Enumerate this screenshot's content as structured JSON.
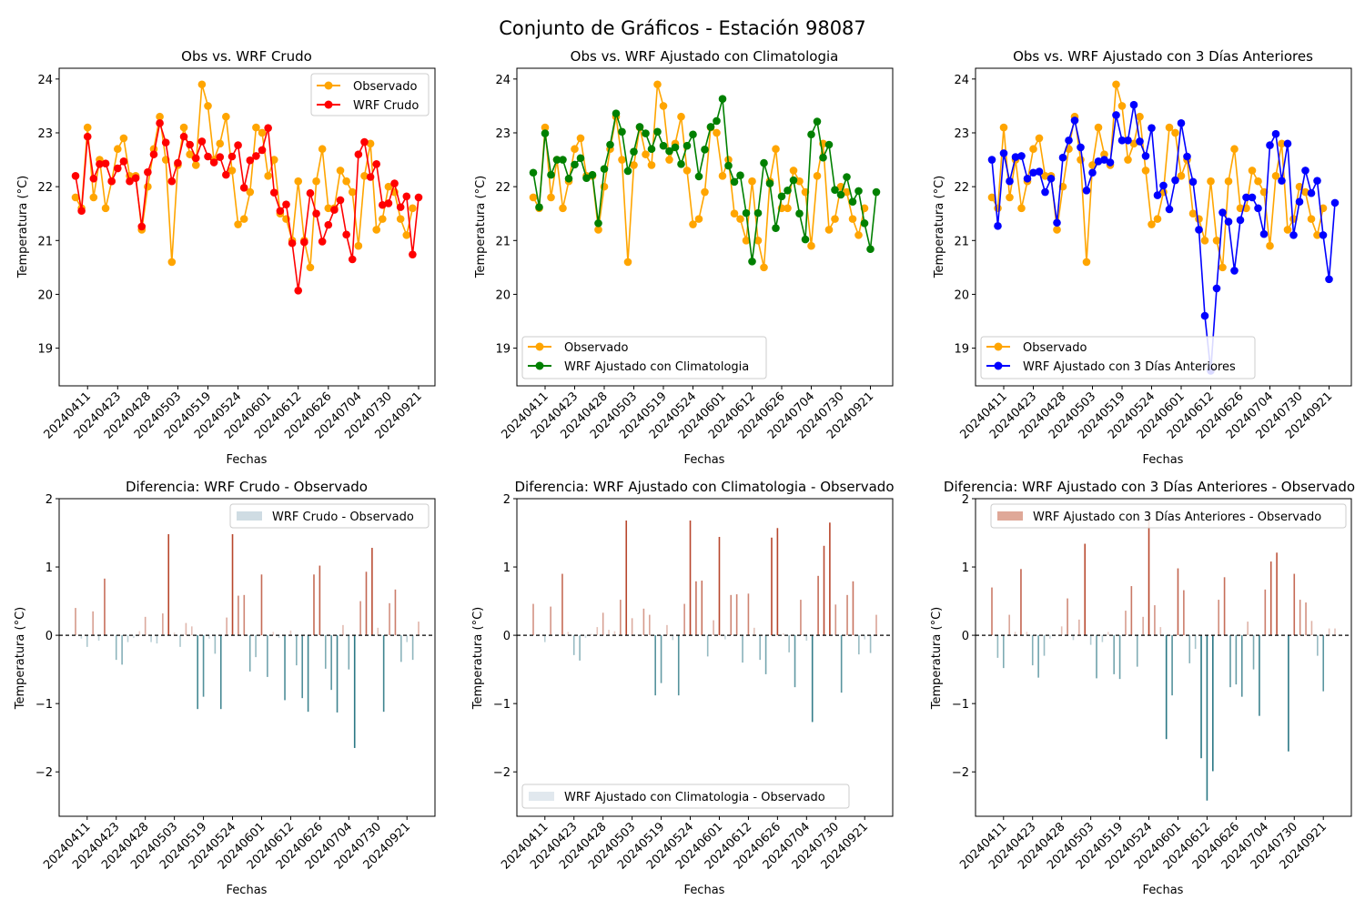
{
  "figure": {
    "suptitle": "Conjunto de Gráficos - Estación 98087"
  },
  "chart_data": [
    {
      "type": "line",
      "title": "Obs vs. WRF Crudo",
      "xlabel": "Fechas",
      "ylabel": "Temperatura (°C)",
      "ylim": [
        18.3,
        24.2
      ],
      "yticks": [
        19,
        20,
        21,
        22,
        23,
        24
      ],
      "xtick_labels": [
        "20240411",
        "20240423",
        "20240428",
        "20240503",
        "20240519",
        "20240524",
        "20240601",
        "20240612",
        "20240626",
        "20240704",
        "20240730",
        "20240921"
      ],
      "legend_position": "upper right",
      "series": [
        {
          "name": "Observado",
          "color": "#ffa500",
          "values": [
            21.8,
            21.6,
            23.1,
            21.8,
            22.5,
            21.6,
            22.1,
            22.7,
            22.9,
            22.2,
            22.2,
            21.2,
            22.0,
            22.7,
            23.3,
            22.5,
            20.6,
            22.4,
            23.1,
            22.6,
            22.4,
            23.9,
            23.5,
            22.5,
            22.8,
            23.3,
            22.3,
            21.3,
            21.4,
            21.9,
            23.1,
            23.0,
            22.2,
            22.5,
            21.5,
            21.4,
            21.0,
            22.1,
            21.0,
            20.5,
            22.1,
            22.7,
            21.6,
            21.6,
            22.3,
            22.1,
            21.9,
            20.9,
            22.2,
            22.8,
            21.2,
            21.4,
            22.0,
            21.9,
            21.4,
            21.1,
            21.6
          ]
        },
        {
          "name": "WRF Crudo",
          "color": "#ff0000",
          "values": [
            22.2,
            21.55,
            22.93,
            22.15,
            22.42,
            22.43,
            22.1,
            22.34,
            22.47,
            22.1,
            22.16,
            21.26,
            22.27,
            22.6,
            23.18,
            22.82,
            22.1,
            22.44,
            22.93,
            22.78,
            22.53,
            22.84,
            22.56,
            22.45,
            22.55,
            22.22,
            22.56,
            22.77,
            21.98,
            22.49,
            22.57,
            22.68,
            23.09,
            21.89,
            21.55,
            21.67,
            20.95,
            20.07,
            20.97,
            21.88,
            21.5,
            20.98,
            21.29,
            21.57,
            21.75,
            21.11,
            20.65,
            22.6,
            22.83,
            22.18,
            22.42,
            21.66,
            21.69,
            22.06,
            21.62,
            21.82,
            20.74,
            21.8
          ]
        }
      ]
    },
    {
      "type": "line",
      "title": "Obs vs. WRF Ajustado con Climatologia",
      "xlabel": "Fechas",
      "ylabel": "Temperatura (°C)",
      "ylim": [
        18.3,
        24.2
      ],
      "yticks": [
        19,
        20,
        21,
        22,
        23,
        24
      ],
      "xtick_labels": [
        "20240411",
        "20240423",
        "20240428",
        "20240503",
        "20240519",
        "20240524",
        "20240601",
        "20240612",
        "20240626",
        "20240704",
        "20240730",
        "20240921"
      ],
      "legend_position": "lower left",
      "series": [
        {
          "name": "Observado",
          "color": "#ffa500",
          "values": [
            21.8,
            21.6,
            23.1,
            21.8,
            22.5,
            21.6,
            22.1,
            22.7,
            22.9,
            22.2,
            22.2,
            21.2,
            22.0,
            22.7,
            23.3,
            22.5,
            20.6,
            22.4,
            23.1,
            22.6,
            22.4,
            23.9,
            23.5,
            22.5,
            22.8,
            23.3,
            22.3,
            21.3,
            21.4,
            21.9,
            23.1,
            23.0,
            22.2,
            22.5,
            21.5,
            21.4,
            21.0,
            22.1,
            21.0,
            20.5,
            22.1,
            22.7,
            21.6,
            21.6,
            22.3,
            22.1,
            21.9,
            20.9,
            22.2,
            22.8,
            21.2,
            21.4,
            22.0,
            21.9,
            21.4,
            21.1,
            21.6
          ]
        },
        {
          "name": "WRF Ajustado con Climatologia",
          "color": "#008000",
          "values": [
            22.26,
            21.62,
            22.99,
            22.22,
            22.5,
            22.5,
            22.15,
            22.41,
            22.53,
            22.16,
            22.22,
            21.32,
            22.33,
            22.78,
            23.36,
            23.02,
            22.29,
            22.65,
            23.11,
            22.99,
            22.7,
            23.02,
            22.76,
            22.66,
            22.73,
            22.42,
            22.76,
            22.97,
            22.19,
            22.69,
            23.11,
            23.22,
            23.63,
            22.39,
            22.09,
            22.21,
            21.51,
            20.61,
            21.51,
            22.44,
            22.06,
            21.23,
            21.82,
            21.93,
            22.12,
            21.5,
            21.02,
            22.97,
            23.21,
            22.54,
            22.78,
            21.94,
            21.85,
            22.18,
            21.72,
            21.92,
            21.32,
            20.84,
            21.9
          ]
        }
      ]
    },
    {
      "type": "line",
      "title": "Obs vs. WRF Ajustado con 3 Días Anteriores",
      "xlabel": "Fechas",
      "ylabel": "Temperatura (°C)",
      "ylim": [
        18.3,
        24.2
      ],
      "yticks": [
        19,
        20,
        21,
        22,
        23,
        24
      ],
      "xtick_labels": [
        "20240411",
        "20240423",
        "20240428",
        "20240503",
        "20240519",
        "20240524",
        "20240601",
        "20240612",
        "20240626",
        "20240704",
        "20240730",
        "20240921"
      ],
      "legend_position": "lower left",
      "series": [
        {
          "name": "Observado",
          "color": "#ffa500",
          "values": [
            21.8,
            21.6,
            23.1,
            21.8,
            22.5,
            21.6,
            22.1,
            22.7,
            22.9,
            22.2,
            22.2,
            21.2,
            22.0,
            22.7,
            23.3,
            22.5,
            20.6,
            22.4,
            23.1,
            22.6,
            22.4,
            23.9,
            23.5,
            22.5,
            22.8,
            23.3,
            22.3,
            21.3,
            21.4,
            21.9,
            23.1,
            23.0,
            22.2,
            22.5,
            21.5,
            21.4,
            21.0,
            22.1,
            21.0,
            20.5,
            22.1,
            22.7,
            21.6,
            21.6,
            22.3,
            22.1,
            21.9,
            20.9,
            22.2,
            22.8,
            21.2,
            21.4,
            22.0,
            21.9,
            21.4,
            21.1,
            21.6
          ]
        },
        {
          "name": "WRF Ajustado con 3 Días Anteriores",
          "color": "#0000ff",
          "values": [
            22.5,
            21.27,
            22.62,
            22.1,
            22.55,
            22.57,
            22.15,
            22.26,
            22.28,
            21.9,
            22.15,
            21.33,
            22.54,
            22.86,
            23.23,
            22.73,
            21.93,
            22.26,
            22.47,
            22.5,
            22.45,
            23.33,
            22.86,
            22.86,
            23.52,
            22.84,
            22.57,
            23.09,
            21.84,
            22.02,
            21.58,
            22.12,
            23.18,
            22.56,
            22.09,
            21.2,
            19.6,
            18.58,
            20.11,
            21.52,
            21.35,
            20.44,
            21.38,
            21.8,
            21.8,
            21.6,
            21.12,
            22.77,
            22.98,
            22.11,
            22.8,
            21.1,
            21.72,
            22.3,
            21.88,
            22.11,
            21.1,
            20.28,
            21.7
          ]
        }
      ]
    },
    {
      "type": "bar",
      "title": "Diferencia: WRF Crudo - Observado",
      "xlabel": "Fechas",
      "ylabel": "Temperatura (°C)",
      "ylim": [
        -2.65,
        2.0
      ],
      "yticks": [
        -2,
        -1,
        0,
        1,
        2
      ],
      "xtick_labels": [
        "20240411",
        "20240423",
        "20240428",
        "20240503",
        "20240519",
        "20240524",
        "20240601",
        "20240612",
        "20240626",
        "20240704",
        "20240730",
        "20240921"
      ],
      "legend_position": "upper right",
      "series": [
        {
          "name": "WRF Crudo - Observado",
          "legend_color": "#cfdce3",
          "values": [
            0.4,
            -0.05,
            -0.17,
            0.35,
            -0.08,
            0.83,
            0.0,
            -0.36,
            -0.43,
            -0.1,
            -0.04,
            0.06,
            0.27,
            -0.1,
            -0.12,
            0.32,
            1.48,
            0.04,
            -0.17,
            0.18,
            0.13,
            -1.08,
            -0.9,
            -0.05,
            -0.27,
            -1.08,
            0.26,
            1.48,
            0.58,
            0.59,
            -0.53,
            -0.32,
            0.89,
            -0.61,
            0.05,
            -0.04,
            -0.95,
            0.07,
            -0.44,
            -0.92,
            -1.12,
            0.89,
            1.02,
            -0.49,
            -0.8,
            -1.13,
            0.15,
            -0.5,
            -1.65,
            0.5,
            0.93,
            1.28,
            0.11,
            -1.12,
            0.47,
            0.67,
            -0.39,
            -0.1,
            -0.36,
            0.2
          ]
        }
      ]
    },
    {
      "type": "bar",
      "title": "Diferencia: WRF Ajustado con Climatologia - Observado",
      "xlabel": "Fechas",
      "ylabel": "Temperatura (°C)",
      "ylim": [
        -2.65,
        2.0
      ],
      "yticks": [
        -2,
        -1,
        0,
        1,
        2
      ],
      "xtick_labels": [
        "20240411",
        "20240423",
        "20240428",
        "20240503",
        "20240519",
        "20240524",
        "20240601",
        "20240612",
        "20240626",
        "20240704",
        "20240730",
        "20240921"
      ],
      "legend_position": "lower left",
      "series": [
        {
          "name": "WRF Ajustado con Climatologia - Observado",
          "legend_color": "#e1e8ee",
          "values": [
            0.46,
            0.02,
            -0.1,
            0.42,
            -0.01,
            0.9,
            0.05,
            -0.29,
            -0.37,
            -0.04,
            0.02,
            0.12,
            0.33,
            0.08,
            0.06,
            0.52,
            1.68,
            0.25,
            0.01,
            0.39,
            0.3,
            -0.88,
            -0.7,
            0.15,
            -0.07,
            -0.88,
            0.46,
            1.68,
            0.79,
            0.8,
            -0.31,
            0.22,
            1.44,
            -0.06,
            0.59,
            0.6,
            -0.4,
            0.61,
            0.11,
            -0.36,
            -0.57,
            1.43,
            1.57,
            0.03,
            -0.25,
            -0.76,
            0.52,
            -0.08,
            -1.27,
            0.87,
            1.31,
            1.65,
            0.45,
            -0.84,
            0.59,
            0.79,
            -0.28,
            -0.06,
            -0.26,
            0.3
          ]
        }
      ]
    },
    {
      "type": "bar",
      "title": "Diferencia: WRF Ajustado con 3 Días Anteriores - Observado",
      "xlabel": "Fechas",
      "ylabel": "Temperatura (°C)",
      "ylim": [
        -2.65,
        2.0
      ],
      "yticks": [
        -2,
        -1,
        0,
        1,
        2
      ],
      "xtick_labels": [
        "20240411",
        "20240423",
        "20240428",
        "20240503",
        "20240519",
        "20240524",
        "20240601",
        "20240612",
        "20240626",
        "20240704",
        "20240730",
        "20240921"
      ],
      "legend_position": "upper right",
      "series": [
        {
          "name": "WRF Ajustado con 3 Días Anteriores - Observado",
          "legend_color": "#dfa898",
          "values": [
            0.7,
            -0.33,
            -0.48,
            0.3,
            0.05,
            0.97,
            0.05,
            -0.44,
            -0.62,
            -0.3,
            -0.05,
            -0.0,
            0.13,
            0.54,
            -0.07,
            0.23,
            1.34,
            -0.14,
            -0.63,
            -0.1,
            0.05,
            -0.57,
            -0.64,
            0.36,
            0.72,
            -0.46,
            0.27,
            1.79,
            0.44,
            0.12,
            -1.52,
            -0.88,
            0.98,
            0.66,
            -0.41,
            -0.2,
            -1.8,
            -2.42,
            -1.99,
            0.52,
            0.85,
            -0.76,
            -0.72,
            -0.9,
            0.2,
            -0.5,
            -1.18,
            0.67,
            1.08,
            1.21,
            -0.0,
            -1.7,
            0.9,
            0.52,
            0.48,
            0.21,
            -0.3,
            -0.82,
            0.1,
            0.1
          ]
        }
      ]
    }
  ]
}
